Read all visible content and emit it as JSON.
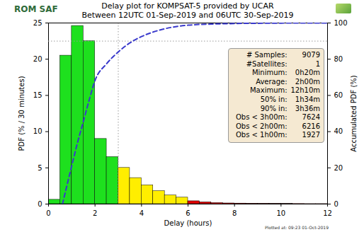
{
  "chart_data": {
    "type": "histogram",
    "title": "Delay plot for KOMPSAT-5 provided by UCAR",
    "subtitle": "Between 12UTC 01-Sep-2019 and 06UTC 30-Sep-2019",
    "logo": "ROM SAF",
    "x_label": "Delay (hours)",
    "y_label": "PDF (% / 30 minutes)",
    "y2_label": "Accumulated PDF (%)",
    "bins": [
      0,
      0.5,
      1,
      1.5,
      2,
      2.5,
      3,
      3.5,
      4,
      4.5,
      5,
      5.5,
      6,
      6.5,
      7,
      7.5,
      8,
      8.5,
      9,
      9.5,
      10,
      10.5,
      11,
      11.5,
      12
    ],
    "values": [
      0.6,
      20.5,
      24.6,
      22.5,
      9.0,
      6.5,
      5.0,
      3.6,
      2.6,
      1.8,
      1.2,
      0.9,
      0.4,
      0.25,
      0.15,
      0.1,
      0.08,
      0.06,
      0.05,
      0.04,
      0.03,
      0.02,
      0.01,
      0.01
    ],
    "colors": [
      "#1ee01e",
      "#1ee01e",
      "#1ee01e",
      "#1ee01e",
      "#1ee01e",
      "#1ee01e",
      "#ffee00",
      "#ffee00",
      "#ffee00",
      "#ffee00",
      "#ffee00",
      "#ffee00",
      "#e00000",
      "#e00000",
      "#e00000",
      "#e00000",
      "#e00000",
      "#e00000",
      "#e00000",
      "#e00000",
      "#e00000",
      "#e00000",
      "#e00000",
      "#e00000"
    ],
    "xlim": [
      0,
      12
    ],
    "xticks": [
      0,
      2,
      4,
      6,
      8,
      10,
      12
    ],
    "ylim": [
      0,
      25
    ],
    "yticks": [
      0,
      5,
      10,
      15,
      20,
      25
    ],
    "y2lim": [
      0,
      100
    ],
    "y2ticks": [
      0,
      20,
      40,
      60,
      80,
      100
    ],
    "grid": false,
    "lines": [
      {
        "type": "line",
        "axis": "y2",
        "color": "#3a3acc",
        "line_style": "dashed",
        "x": [
          0.6,
          0.75,
          1,
          1.25,
          1.5,
          1.75,
          2,
          2.5,
          3,
          3.5,
          4,
          4.5,
          5,
          6,
          7,
          8,
          9,
          10,
          11,
          12
        ],
        "values": [
          0,
          8,
          21.2,
          34,
          45.7,
          57.5,
          68.2,
          77.5,
          84,
          89,
          92.5,
          95,
          96.8,
          98.8,
          99.4,
          99.7,
          99.85,
          99.95,
          100,
          100
        ]
      }
    ],
    "reference_lines": [
      {
        "axis": "x",
        "value": 3,
        "color": "#9a9a9a",
        "line_style": "dotted"
      },
      {
        "axis": "y2",
        "value": 90,
        "color": "#9a9a9a",
        "line_style": "dotted"
      }
    ],
    "stats_box": [
      {
        "label": "# Samples:",
        "value": 9079
      },
      {
        "label": "#Satellites:",
        "value": 1
      },
      {
        "label": "Minimum:",
        "value": "0h20m"
      },
      {
        "label": "Average:",
        "value": "2h00m"
      },
      {
        "label": "Maximum:",
        "value": "12h10m"
      },
      {
        "label": "50% in:",
        "value": "1h34m"
      },
      {
        "label": "90% in:",
        "value": "3h36m"
      },
      {
        "label": "Obs < 3h00m:",
        "value": 7624
      },
      {
        "label": "Obs < 2h00m:",
        "value": 6216
      },
      {
        "label": "Obs < 1h00m:",
        "value": 1927
      }
    ],
    "footer": "Plotted at: 09:23 01-Oct-2019"
  }
}
